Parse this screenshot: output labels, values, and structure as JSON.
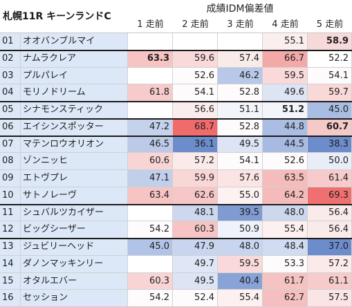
{
  "title": "札幌11R キーンランドC",
  "metric_label": "成績IDM偏差値",
  "columns": [
    "1 走前",
    "2 走前",
    "3 走前",
    "4 走前",
    "5 走前"
  ],
  "rows": [
    {
      "no": "01",
      "name": "オオバンブルマイ",
      "values": [
        "",
        "",
        "",
        "55.1",
        "58.9"
      ],
      "bold": [
        false,
        false,
        false,
        false,
        true
      ],
      "colors": [
        "#ffffff",
        "#ffffff",
        "#ffffff",
        "#fbeeee",
        "#f8d9d9"
      ]
    },
    {
      "no": "02",
      "name": "ナムラクレア",
      "values": [
        "63.3",
        "59.6",
        "57.4",
        "66.7",
        "52.2"
      ],
      "bold": [
        true,
        false,
        false,
        false,
        false
      ],
      "colors": [
        "#f7c3c3",
        "#f9d9d9",
        "#faebeb",
        "#f4a9a9",
        "#ffffff"
      ]
    },
    {
      "no": "03",
      "name": "プルパレイ",
      "values": [
        "",
        "52.6",
        "46.2",
        "59.5",
        "54.1"
      ],
      "bold": [
        false,
        false,
        false,
        false,
        false
      ],
      "colors": [
        "#ffffff",
        "#fdfbfb",
        "#b9c8e8",
        "#f9d9d9",
        "#fdfbfb"
      ]
    },
    {
      "no": "04",
      "name": "モリノドリーム",
      "values": [
        "61.8",
        "54.1",
        "52.8",
        "49.6",
        "59.7"
      ],
      "bold": [
        false,
        false,
        false,
        false,
        false
      ],
      "colors": [
        "#f7cbcb",
        "#fdfbfb",
        "#fdfbfb",
        "#dde4f4",
        "#f9d8d8"
      ]
    },
    {
      "no": "05",
      "name": "シナモンスティック",
      "values": [
        "",
        "56.6",
        "51.1",
        "51.2",
        "45.0"
      ],
      "bold": [
        false,
        false,
        false,
        true,
        false
      ],
      "colors": [
        "#ffffff",
        "#fbeded",
        "#f4f5fb",
        "#f4f5fb",
        "#a9bde3"
      ]
    },
    {
      "no": "06",
      "name": "エイシンスポッター",
      "values": [
        "47.2",
        "68.7",
        "52.8",
        "44.8",
        "60.7"
      ],
      "bold": [
        false,
        false,
        false,
        false,
        true
      ],
      "colors": [
        "#c5d2ec",
        "#f06b6b",
        "#fdfbfb",
        "#aabde3",
        "#f6c9c9"
      ]
    },
    {
      "no": "07",
      "name": "マテンロウオリオン",
      "values": [
        "46.5",
        "36.1",
        "49.5",
        "44.5",
        "38.3"
      ],
      "bold": [
        false,
        false,
        false,
        false,
        false
      ],
      "colors": [
        "#bccae8",
        "#6d8ccc",
        "#dde4f4",
        "#a7bae2",
        "#6d8ccc"
      ]
    },
    {
      "no": "08",
      "name": "ゾンニッヒ",
      "values": [
        "60.6",
        "57.2",
        "54.1",
        "52.6",
        "50.0"
      ],
      "bold": [
        false,
        false,
        false,
        false,
        false
      ],
      "colors": [
        "#f8d4d4",
        "#faeaea",
        "#fdfbfb",
        "#fdfbfb",
        "#e8edf8"
      ]
    },
    {
      "no": "09",
      "name": "エトヴプレ",
      "values": [
        "47.1",
        "59.9",
        "57.6",
        "63.5",
        "61.4"
      ],
      "bold": [
        false,
        false,
        false,
        false,
        false
      ],
      "colors": [
        "#c1cfeb",
        "#f9d7d7",
        "#fae4e4",
        "#f5bcbc",
        "#f7cbcb"
      ]
    },
    {
      "no": "10",
      "name": "サトノレーヴ",
      "values": [
        "63.4",
        "62.6",
        "55.0",
        "64.2",
        "69.3"
      ],
      "bold": [
        false,
        false,
        false,
        false,
        false
      ],
      "colors": [
        "#f7c3c3",
        "#f7c7c7",
        "#fcf2f2",
        "#f5bbbb",
        "#f07070"
      ]
    },
    {
      "no": "11",
      "name": "シュバルツカイザー",
      "values": [
        "",
        "48.1",
        "39.5",
        "48.0",
        "56.4"
      ],
      "bold": [
        false,
        false,
        false,
        false,
        false
      ],
      "colors": [
        "#ffffff",
        "#cdd8ef",
        "#7f9bd2",
        "#cdd8ef",
        "#faebeb"
      ]
    },
    {
      "no": "12",
      "name": "ビッグシーザー",
      "values": [
        "54.2",
        "60.3",
        "50.9",
        "55.4",
        "56.4"
      ],
      "bold": [
        false,
        false,
        false,
        false,
        false
      ],
      "colors": [
        "#fdfbfb",
        "#f6c4c4",
        "#eff2fa",
        "#fcf0f0",
        "#faebeb"
      ]
    },
    {
      "no": "13",
      "name": "ジュビリーヘッド",
      "values": [
        "45.0",
        "47.9",
        "48.0",
        "48.4",
        "37.0"
      ],
      "bold": [
        false,
        false,
        false,
        false,
        false
      ],
      "colors": [
        "#b1c3e6",
        "#c9d5ee",
        "#c9d5ee",
        "#d1dbf1",
        "#6d8ccc"
      ]
    },
    {
      "no": "14",
      "name": "ダノンマッキンリー",
      "values": [
        "",
        "49.7",
        "59.5",
        "53.3",
        "57.2"
      ],
      "bold": [
        false,
        false,
        false,
        false,
        false
      ],
      "colors": [
        "#ffffff",
        "#dfe6f5",
        "#f9d9d9",
        "#fdfbfb",
        "#faeaea"
      ]
    },
    {
      "no": "15",
      "name": "オタルエバー",
      "values": [
        "60.3",
        "49.5",
        "40.4",
        "61.7",
        "61.1"
      ],
      "bold": [
        false,
        false,
        false,
        false,
        false
      ],
      "colors": [
        "#f8d4d4",
        "#dde4f4",
        "#8aa3d6",
        "#f6c3c3",
        "#f7cbcb"
      ]
    },
    {
      "no": "16",
      "name": "セッション",
      "values": [
        "54.2",
        "52.4",
        "55.4",
        "62.7",
        "57.5"
      ],
      "bold": [
        false,
        false,
        false,
        false,
        false
      ],
      "colors": [
        "#fdfbfb",
        "#fdfbfb",
        "#fcf0f0",
        "#f5bfbf",
        "#fae4e4"
      ]
    }
  ],
  "colors": {
    "number_cell": "#dce7f7",
    "name_cell": "#dce7f7",
    "thick_rule": "#1a1a1a"
  }
}
